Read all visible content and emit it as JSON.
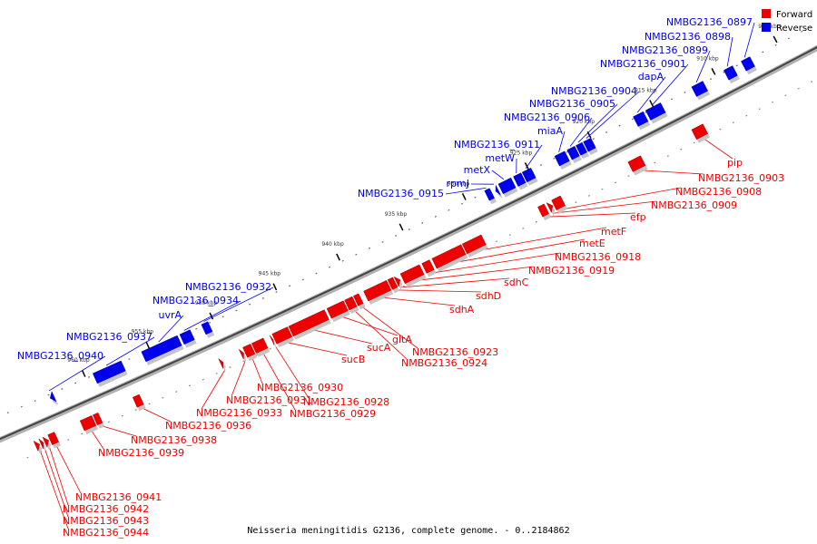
{
  "caption": "Neisseria meningitidis G2136, complete genome. - 0..2184862",
  "legend": {
    "forward": {
      "label": "Forward",
      "color": "#ee0000"
    },
    "reverse": {
      "label": "Reverse",
      "color": "#0000ee"
    }
  },
  "colors": {
    "forward": "#ee0000",
    "reverse": "#0000ee",
    "backbone": "#555555"
  },
  "ticks": [
    {
      "kbp": 905,
      "label": "905 kbp"
    },
    {
      "kbp": 910,
      "label": "910 kbp"
    },
    {
      "kbp": 915,
      "label": "915 kbp"
    },
    {
      "kbp": 920,
      "label": "920 kbp"
    },
    {
      "kbp": 925,
      "label": "925 kbp"
    },
    {
      "kbp": 930,
      "label": "930 kbp"
    },
    {
      "kbp": 935,
      "label": "935 kbp"
    },
    {
      "kbp": 940,
      "label": "940 kbp"
    },
    {
      "kbp": 945,
      "label": "945 kbp"
    },
    {
      "kbp": 950,
      "label": "950 kbp"
    },
    {
      "kbp": 955,
      "label": "955 kbp"
    },
    {
      "kbp": 960,
      "label": "960 kbp"
    }
  ],
  "features": [
    {
      "name": "NMBG2136_0897",
      "strand": "reverse",
      "start": 907.2,
      "end": 907.9
    },
    {
      "name": "NMBG2136_0898",
      "strand": "reverse",
      "start": 908.6,
      "end": 909.3
    },
    {
      "name": "NMBG2136_0899",
      "strand": "reverse",
      "start": 911.0,
      "end": 911.9
    },
    {
      "name": "NMBG2136_0901",
      "strand": "reverse",
      "start": 914.4,
      "end": 915.6
    },
    {
      "name": "dapA",
      "strand": "reverse",
      "start": 915.8,
      "end": 916.6
    },
    {
      "name": "NMBG2136_0904",
      "strand": "reverse",
      "start": 920.0,
      "end": 920.6
    },
    {
      "name": "NMBG2136_0905",
      "strand": "reverse",
      "start": 920.7,
      "end": 921.2
    },
    {
      "name": "NMBG2136_0906",
      "strand": "reverse",
      "start": 921.3,
      "end": 921.9
    },
    {
      "name": "miaA",
      "strand": "reverse",
      "start": 922.1,
      "end": 922.9
    },
    {
      "name": "NMBG2136_0911",
      "strand": "reverse",
      "start": 924.8,
      "end": 925.5
    },
    {
      "name": "metW",
      "strand": "reverse",
      "start": 925.6,
      "end": 926.2
    },
    {
      "name": "metX",
      "strand": "reverse",
      "start": 926.4,
      "end": 927.4
    },
    {
      "name": "rpmJ",
      "strand": "reverse",
      "start": 927.6,
      "end": 927.8
    },
    {
      "name": "NMBG2136_0915",
      "strand": "reverse",
      "start": 928.1,
      "end": 928.5
    },
    {
      "name": "NMBG2136_0932",
      "strand": "reverse",
      "start": 950.4,
      "end": 950.9
    },
    {
      "name": "NMBG2136_0934",
      "strand": "reverse",
      "start": 951.8,
      "end": 952.6
    },
    {
      "name": "uvrA",
      "strand": "reverse",
      "start": 952.8,
      "end": 955.6
    },
    {
      "name": "NMBG2136_0937",
      "strand": "reverse",
      "start": 957.2,
      "end": 959.4
    },
    {
      "name": "NMBG2136_0940",
      "strand": "reverse",
      "start": 962.6,
      "end": 962.9
    },
    {
      "name": "pip",
      "strand": "forward",
      "start": 912.4,
      "end": 913.3
    },
    {
      "name": "NMBG2136_0903",
      "strand": "forward",
      "start": 917.4,
      "end": 918.4
    },
    {
      "name": "NMBG2136_0908",
      "strand": "forward",
      "start": 923.8,
      "end": 924.5
    },
    {
      "name": "NMBG2136_0909",
      "strand": "forward",
      "start": 924.6,
      "end": 924.9
    },
    {
      "name": "efp",
      "strand": "forward",
      "start": 925.1,
      "end": 925.6
    },
    {
      "name": "metF",
      "strand": "forward",
      "start": 930.1,
      "end": 931.6
    },
    {
      "name": "metE",
      "strand": "forward",
      "start": 931.7,
      "end": 934.0
    },
    {
      "name": "NMBG2136_0918",
      "strand": "forward",
      "start": 934.2,
      "end": 934.8
    },
    {
      "name": "NMBG2136_0919",
      "strand": "forward",
      "start": 935.0,
      "end": 936.5
    },
    {
      "name": "sdhC",
      "strand": "forward",
      "start": 936.7,
      "end": 937.0
    },
    {
      "name": "sdhD",
      "strand": "forward",
      "start": 937.1,
      "end": 937.5
    },
    {
      "name": "sdhA",
      "strand": "forward",
      "start": 937.6,
      "end": 939.4
    },
    {
      "name": "NMBG2136_0923",
      "strand": "forward",
      "start": 939.8,
      "end": 940.2
    },
    {
      "name": "NMBG2136_0924",
      "strand": "forward",
      "start": 940.3,
      "end": 940.9
    },
    {
      "name": "gltA",
      "strand": "forward",
      "start": 941.0,
      "end": 942.3
    },
    {
      "name": "sucA",
      "strand": "forward",
      "start": 942.5,
      "end": 945.3
    },
    {
      "name": "sucB",
      "strand": "forward",
      "start": 945.4,
      "end": 946.6
    },
    {
      "name": "NMBG2136_0928",
      "strand": "forward",
      "start": 946.7,
      "end": 946.8
    },
    {
      "name": "NMBG2136_0929",
      "strand": "forward",
      "start": 947.3,
      "end": 948.2
    },
    {
      "name": "NMBG2136_0930",
      "strand": "forward",
      "start": 948.3,
      "end": 948.9
    },
    {
      "name": "NMBG2136_0931",
      "strand": "forward",
      "start": 949.0,
      "end": 949.2
    },
    {
      "name": "NMBG2136_0933",
      "strand": "forward",
      "start": 950.6,
      "end": 950.8
    },
    {
      "name": "NMBG2136_0936",
      "strand": "forward",
      "start": 957.0,
      "end": 957.5
    },
    {
      "name": "NMBG2136_0938",
      "strand": "forward",
      "start": 960.2,
      "end": 960.6
    },
    {
      "name": "NMBG2136_0939",
      "strand": "forward",
      "start": 960.7,
      "end": 961.6
    },
    {
      "name": "NMBG2136_0941",
      "strand": "forward",
      "start": 963.6,
      "end": 964.1
    },
    {
      "name": "NMBG2136_0942",
      "strand": "forward",
      "start": 964.2,
      "end": 964.5
    },
    {
      "name": "NMBG2136_0943",
      "strand": "forward",
      "start": 964.6,
      "end": 964.8
    },
    {
      "name": "NMBG2136_0944",
      "strand": "forward",
      "start": 964.9,
      "end": 965.2
    }
  ]
}
